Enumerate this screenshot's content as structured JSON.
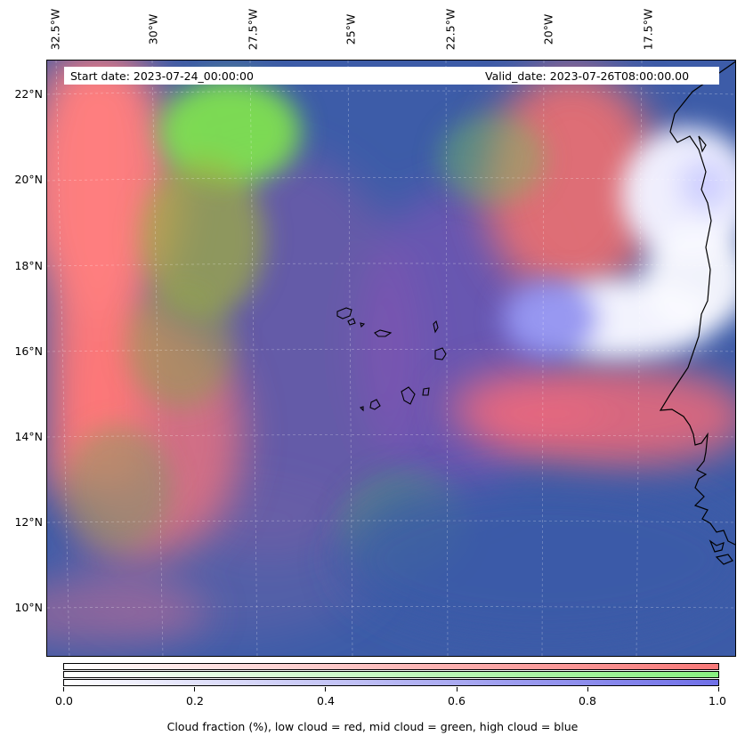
{
  "map": {
    "start_label": "Start date: 2023-07-24_00:00:00",
    "valid_label": "Valid_date: 2023-07-26T08:00:00.00",
    "lon_labels": [
      "32.5°W",
      "30°W",
      "27.5°W",
      "25°W",
      "22.5°W",
      "20°W",
      "17.5°W"
    ],
    "lat_labels": [
      "22°N",
      "20°N",
      "18°N",
      "16°N",
      "14°N",
      "12°N",
      "10°N"
    ],
    "layers": [
      {
        "name": "low cloud",
        "color": "#ff7070"
      },
      {
        "name": "mid cloud",
        "color": "#80ee70"
      },
      {
        "name": "high cloud",
        "color": "#7070ee"
      }
    ],
    "ocean_color": "#3b5fa8"
  },
  "colorbar": {
    "ticks": [
      "0.0",
      "0.2",
      "0.4",
      "0.6",
      "0.8",
      "1.0"
    ],
    "title": "Cloud fraction (%), low cloud = red, mid cloud = green, high cloud = blue",
    "low_color": "#f87878",
    "mid_color": "#88f080",
    "high_color": "#7070e8"
  }
}
